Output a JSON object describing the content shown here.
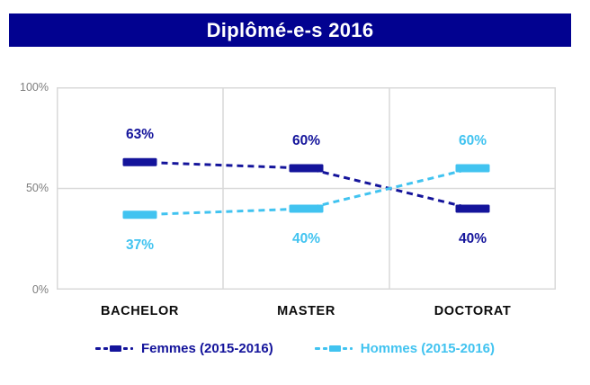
{
  "header": {
    "title": "Diplômé-e-s 2016",
    "background_color": "#020290",
    "text_color": "#FFFFFF"
  },
  "chart_data": {
    "type": "line",
    "title": "Diplômé-e-s 2016",
    "categories": [
      "BACHELOR",
      "MASTER",
      "DOCTORAT"
    ],
    "series": [
      {
        "name": "Femmes (2015-2016)",
        "color": "#14149B",
        "values": [
          63,
          60,
          40
        ],
        "labels": [
          "63%",
          "60%",
          "40%"
        ]
      },
      {
        "name": "Hommes (2015-2016)",
        "color": "#41C3F0",
        "values": [
          37,
          40,
          60
        ],
        "labels": [
          "37%",
          "40%",
          "60%"
        ]
      }
    ],
    "y_axis": {
      "min": 0,
      "max": 100,
      "ticks": [
        "100%",
        "50%",
        "0%"
      ],
      "tick_values": [
        100,
        50,
        0
      ],
      "label_color": "#7D7D7D"
    },
    "x_axis": {
      "label_color": "#0B0B0B"
    },
    "grid": {
      "show": true,
      "line_color": "#D9D9D9"
    },
    "line_style": "dashed",
    "marker_style": "thick-dash",
    "legend_position": "bottom"
  }
}
